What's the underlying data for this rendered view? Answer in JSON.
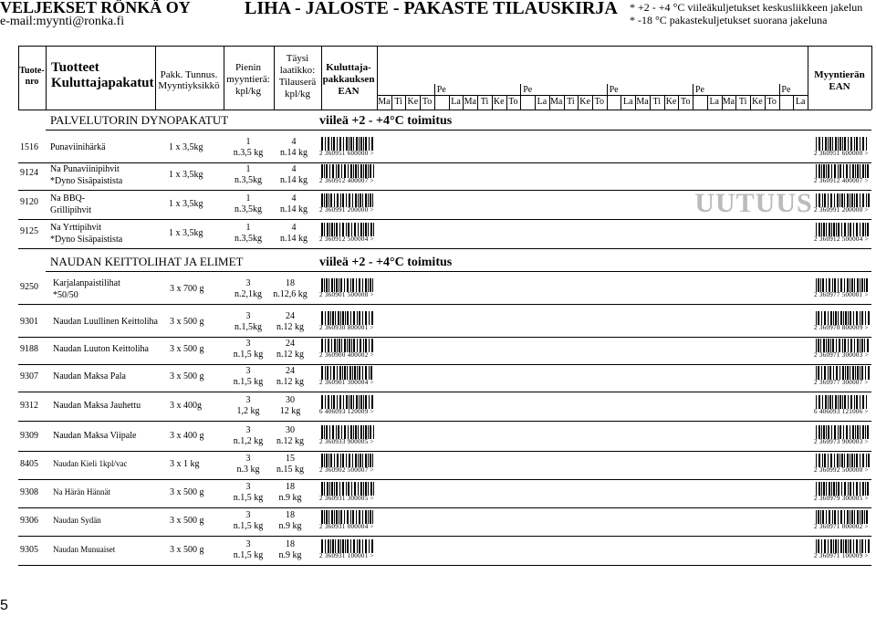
{
  "header": {
    "company": "VELJEKSET RÖNKÄ OY",
    "email": "e-mail:myynti@ronka.fi",
    "title": "LIHA - JALOSTE - PAKASTE TILAUSKIRJA",
    "notes": [
      "* +2 - +4 °C viileäkuljetukset keskusliikkeen jakelun",
      "* -18 °C pakastekuljetukset suorana jakeluna"
    ]
  },
  "columns": {
    "nro": [
      "Tuote-",
      "nro"
    ],
    "products": [
      "Tuotteet",
      "Kuluttajapakatut"
    ],
    "pack": [
      "Pakk. Tunnus.",
      "Myyntiyksikkö"
    ],
    "min": [
      "Pienin",
      "myyntierä:",
      "kpl/kg"
    ],
    "full": [
      "Täysi",
      "laatikko:",
      "Tilauserä",
      "kpl/kg"
    ],
    "ean": [
      "Kuluttaja-",
      "pakkauksen",
      "EAN"
    ],
    "days": [
      "Ma",
      "Ti",
      "Ke",
      "To",
      "Pe",
      "La"
    ],
    "batch_ean": [
      "Myyntierän",
      "EAN"
    ]
  },
  "sections": [
    {
      "title": "PALVELUTORIN DYNOPAKATUT",
      "note": "viileä +2 - +4°C toimitus",
      "rows": [
        {
          "nro": "1516",
          "name": [
            "Punaviinihärkä"
          ],
          "pack": "1 x 3,5kg",
          "min": [
            "1",
            "n.3,5 kg"
          ],
          "full": [
            "4",
            "n.14 kg"
          ],
          "ean": "2 360951 600000 >",
          "batch_ean": "2 360951 600000 >"
        },
        {
          "nro": "9124",
          "name": [
            "Na Punaviinipihvit",
            "*Dyno Sisäpaistista"
          ],
          "pack": "1 x 3,5kg",
          "min": [
            "1",
            "n.3,5kg"
          ],
          "full": [
            "4",
            "n.14 kg"
          ],
          "ean": "2 360912 400007 >",
          "batch_ean": "2 360912 400007 >"
        },
        {
          "nro": "9120",
          "name": [
            "Na BBQ-",
            "Grillipihvit"
          ],
          "pack": "1 x 3,5kg",
          "min": [
            "1",
            "n.3,5kg"
          ],
          "full": [
            "4",
            "n.14 kg"
          ],
          "ean": "2 360991 200000 >",
          "batch_ean": "2 360991 200000 >"
        },
        {
          "nro": "9125",
          "name": [
            "Na Yrttipihvit",
            "*Dyno Sisäpaistista"
          ],
          "pack": "1 x 3,5kg",
          "min": [
            "1",
            "n.3,5kg"
          ],
          "full": [
            "4",
            "n.14 kg"
          ],
          "ean": "2 360912 500004 >",
          "batch_ean": "2 360912 500004 >"
        }
      ]
    },
    {
      "title": "NAUDAN KEITTOLIHAT JA ELIMET",
      "note": "viileä +2 - +4°C toimitus",
      "rows": [
        {
          "nro": "9250",
          "name": [
            "Karjalanpaistilihat",
            "*50/50"
          ],
          "pack": "3 x 700 g",
          "min": [
            "3",
            "n.2,1kg"
          ],
          "full": [
            "18",
            "n.12,6 kg"
          ],
          "ean": "2 360901 500008 >",
          "batch_ean": "2 360977 500001 >"
        },
        {
          "nro": "9301",
          "name": [
            "Naudan Luullinen Keittoliha"
          ],
          "pack": "3 x 500 g",
          "min": [
            "3",
            "n.1,5kg"
          ],
          "full": [
            "24",
            "n.12 kg"
          ],
          "ean": "2 360930 800001 >",
          "batch_ean": "2 360970 800009 >"
        },
        {
          "nro": "9188",
          "name": [
            "Naudan Luuton Keittoliha"
          ],
          "pack": "3 x 500 g",
          "min": [
            "3",
            "n.1,5 kg"
          ],
          "full": [
            "24",
            "n.12 kg"
          ],
          "ean": "2 360900 400002 >",
          "batch_ean": "2 360971 300003 >"
        },
        {
          "nro": "9307",
          "name": [
            "Naudan Maksa Pala"
          ],
          "pack": "3 x 500 g",
          "min": [
            "3",
            "n.1,5 kg"
          ],
          "full": [
            "24",
            "n.12 kg"
          ],
          "ean": "2 360901 300004 >",
          "batch_ean": "2 360977 300007 >"
        },
        {
          "nro": "9312",
          "name": [
            "Naudan Maksa Jauhettu"
          ],
          "pack": "3 x 400g",
          "min": [
            "3",
            "1,2 kg"
          ],
          "full": [
            "30",
            "12 kg"
          ],
          "ean": "6 406093 120009 >",
          "batch_ean": "6 406093 121006 >"
        },
        {
          "nro": "9309",
          "name": [
            "Naudan Maksa Viipale"
          ],
          "pack": "3 x 400 g",
          "min": [
            "3",
            "n.1,2 kg"
          ],
          "full": [
            "30",
            "n.12 kg"
          ],
          "ean": "2 360933 900005 >",
          "batch_ean": "2 360973 900003 >"
        },
        {
          "nro": "8405",
          "name": [
            "Naudan Kieli 1kpl/vac"
          ],
          "pack": "3 x 1 kg",
          "min": [
            "3",
            "n.3 kg"
          ],
          "full": [
            "15",
            "n.15 kg"
          ],
          "ean": "2 360902 500007 >",
          "batch_ean": "2 360992 500000 >"
        },
        {
          "nro": "9308",
          "name": [
            "Na Härän Hännät"
          ],
          "pack": "3 x 500 g",
          "min": [
            "3",
            "n.1,5 kg"
          ],
          "full": [
            "18",
            "n.9 kg"
          ],
          "ean": "2 360931 300005 >",
          "batch_ean": "2 360979 300005 >"
        },
        {
          "nro": "9306",
          "name": [
            "Naudan Sydän"
          ],
          "pack": "3 x 500 g",
          "min": [
            "3",
            "n.1,5 kg"
          ],
          "full": [
            "18",
            "n.9 kg"
          ],
          "ean": "2 360931 000004 >",
          "batch_ean": "2 360971 000002 >"
        },
        {
          "nro": "9305",
          "name": [
            "Naudan Munuaiset"
          ],
          "pack": "3 x 500 g",
          "min": [
            "3",
            "n.1,5 kg"
          ],
          "full": [
            "18",
            "n.9 kg"
          ],
          "ean": "2 360931 100001 >",
          "batch_ean": "2 360971 100009 >"
        }
      ]
    }
  ],
  "badge": "UUTUUS",
  "page_number": "5"
}
